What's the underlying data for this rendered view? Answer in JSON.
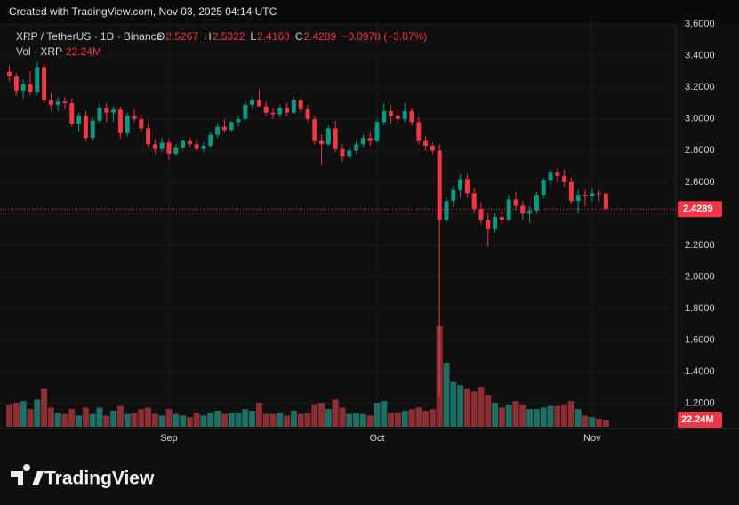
{
  "chart_data": {
    "type": "candlestick",
    "created": "Created with TradingView.com, Nov 03, 2025 04:14 UTC",
    "symbol": "XRP / TetherUS · 1D · Binance",
    "legend": [
      {
        "label": "O",
        "value": "2.5267"
      },
      {
        "label": "H",
        "value": "2.5322"
      },
      {
        "label": "L",
        "value": "2.4160"
      },
      {
        "label": "C",
        "value": "2.4289"
      }
    ],
    "change": "−0.0978 (−3.87%)",
    "vol_title": "Vol · XRP",
    "brand": "TradingView",
    "up_color": "#089981",
    "down_color": "#f23645",
    "volume_up_color": "#1f6e63",
    "volume_down_color": "#8a2f34",
    "grid": true,
    "ylim": [
      1.05,
      3.63
    ],
    "yticks": [
      {
        "value": 3.6,
        "label": "3.6000"
      },
      {
        "value": 3.4,
        "label": "3.4000"
      },
      {
        "value": 3.2,
        "label": "3.2000"
      },
      {
        "value": 3.0,
        "label": "3.0000"
      },
      {
        "value": 2.8,
        "label": "2.8000"
      },
      {
        "value": 2.6,
        "label": "2.6000"
      },
      {
        "value": 2.4,
        "label": "2.4000"
      },
      {
        "value": 2.2,
        "label": "2.2000"
      },
      {
        "value": 2.0,
        "label": "2.0000"
      },
      {
        "value": 1.8,
        "label": "1.8000"
      },
      {
        "value": 1.6,
        "label": "1.6000"
      },
      {
        "value": 1.4,
        "label": "1.4000"
      },
      {
        "value": 1.2,
        "label": "1.2000"
      }
    ],
    "categories": [
      null,
      null,
      null,
      null,
      null,
      null,
      null,
      null,
      null,
      null,
      null,
      null,
      null,
      null,
      null,
      null,
      null,
      null,
      null,
      null,
      null,
      null,
      null,
      "Sep",
      null,
      null,
      null,
      null,
      null,
      null,
      null,
      null,
      null,
      null,
      null,
      null,
      null,
      null,
      null,
      null,
      null,
      null,
      null,
      null,
      null,
      null,
      null,
      null,
      null,
      null,
      null,
      null,
      null,
      "Oct",
      null,
      null,
      null,
      null,
      null,
      null,
      null,
      null,
      null,
      null,
      null,
      null,
      null,
      null,
      null,
      null,
      null,
      null,
      null,
      null,
      null,
      null,
      null,
      null,
      null,
      null,
      null,
      null,
      null,
      null,
      "Nov",
      null,
      null
    ],
    "open": [
      3.3,
      3.27,
      3.18,
      3.22,
      3.17,
      3.33,
      3.12,
      3.09,
      3.11,
      3.1,
      2.97,
      3.02,
      2.88,
      2.99,
      3.07,
      3.04,
      3.06,
      2.91,
      3.02,
      3.0,
      2.94,
      2.84,
      2.81,
      2.85,
      2.78,
      2.82,
      2.86,
      2.84,
      2.81,
      2.83,
      2.9,
      2.95,
      2.93,
      2.98,
      3.0,
      3.09,
      3.12,
      3.08,
      3.04,
      3.03,
      3.07,
      3.04,
      3.12,
      3.06,
      3.0,
      2.86,
      2.84,
      2.94,
      2.81,
      2.76,
      2.8,
      2.84,
      2.88,
      2.86,
      2.98,
      3.05,
      3.02,
      3.0,
      3.05,
      2.98,
      2.86,
      2.83,
      2.8,
      2.36,
      2.48,
      2.55,
      2.62,
      2.53,
      2.43,
      2.36,
      2.3,
      2.38,
      2.36,
      2.49,
      2.45,
      2.4,
      2.42,
      2.52,
      2.61,
      2.66,
      2.64,
      2.6,
      2.48,
      2.52,
      2.51,
      2.53,
      2.5267
    ],
    "high": [
      3.34,
      3.29,
      3.25,
      3.3,
      3.36,
      3.4,
      3.16,
      3.14,
      3.14,
      3.13,
      3.04,
      3.05,
      3.01,
      3.1,
      3.1,
      3.08,
      3.08,
      3.04,
      3.06,
      3.03,
      2.97,
      2.87,
      2.88,
      2.87,
      2.84,
      2.87,
      2.88,
      2.87,
      2.85,
      2.92,
      2.97,
      3.0,
      2.99,
      3.02,
      3.11,
      3.14,
      3.19,
      3.11,
      3.07,
      3.09,
      3.1,
      3.14,
      3.13,
      3.09,
      3.02,
      2.9,
      2.96,
      2.99,
      2.84,
      2.82,
      2.86,
      2.9,
      2.92,
      3.0,
      3.1,
      3.09,
      3.06,
      3.1,
      3.07,
      3.01,
      2.89,
      2.85,
      2.84,
      2.5,
      2.58,
      2.65,
      2.65,
      2.56,
      2.47,
      2.4,
      2.4,
      2.42,
      2.52,
      2.54,
      2.48,
      2.45,
      2.54,
      2.63,
      2.68,
      2.69,
      2.68,
      2.63,
      2.55,
      2.55,
      2.56,
      2.55,
      2.5322
    ],
    "low": [
      3.24,
      3.15,
      3.13,
      3.15,
      3.15,
      3.1,
      3.05,
      3.05,
      3.06,
      2.95,
      2.92,
      2.86,
      2.86,
      2.97,
      2.98,
      2.98,
      2.88,
      2.89,
      2.98,
      2.92,
      2.82,
      2.78,
      2.79,
      2.74,
      2.76,
      2.8,
      2.82,
      2.8,
      2.79,
      2.82,
      2.88,
      2.91,
      2.92,
      2.95,
      2.99,
      3.06,
      3.1,
      3.02,
      3.0,
      3.01,
      3.02,
      3.03,
      3.04,
      2.98,
      2.84,
      2.71,
      2.83,
      2.79,
      2.73,
      2.75,
      2.78,
      2.82,
      2.83,
      2.85,
      2.96,
      2.97,
      2.98,
      2.98,
      2.96,
      2.84,
      2.8,
      2.78,
      1.25,
      2.34,
      2.44,
      2.5,
      2.5,
      2.4,
      2.33,
      2.19,
      2.28,
      2.33,
      2.35,
      2.42,
      2.36,
      2.34,
      2.4,
      2.5,
      2.58,
      2.6,
      2.57,
      2.46,
      2.4,
      2.45,
      2.48,
      2.48,
      2.416
    ],
    "close": [
      3.27,
      3.18,
      3.22,
      3.17,
      3.33,
      3.12,
      3.09,
      3.11,
      3.1,
      2.97,
      3.02,
      2.88,
      2.99,
      3.07,
      3.04,
      3.06,
      2.91,
      3.02,
      3.0,
      2.94,
      2.84,
      2.81,
      2.85,
      2.78,
      2.82,
      2.86,
      2.84,
      2.81,
      2.83,
      2.9,
      2.95,
      2.93,
      2.98,
      3.0,
      3.09,
      3.12,
      3.08,
      3.04,
      3.03,
      3.07,
      3.04,
      3.12,
      3.06,
      3.0,
      2.86,
      2.84,
      2.94,
      2.81,
      2.76,
      2.8,
      2.84,
      2.88,
      2.86,
      2.98,
      3.05,
      3.02,
      3.0,
      3.05,
      2.98,
      2.86,
      2.83,
      2.8,
      2.36,
      2.48,
      2.55,
      2.62,
      2.53,
      2.43,
      2.36,
      2.3,
      2.38,
      2.36,
      2.49,
      2.45,
      2.4,
      2.42,
      2.52,
      2.61,
      2.66,
      2.64,
      2.6,
      2.48,
      2.52,
      2.51,
      2.53,
      2.5267,
      2.4289
    ],
    "volume": {
      "values": [
        70,
        75,
        80,
        55,
        85,
        120,
        60,
        45,
        40,
        55,
        35,
        60,
        40,
        60,
        35,
        50,
        65,
        40,
        45,
        55,
        60,
        40,
        35,
        55,
        40,
        35,
        30,
        45,
        35,
        45,
        50,
        40,
        45,
        45,
        55,
        50,
        75,
        40,
        40,
        45,
        35,
        50,
        40,
        45,
        70,
        75,
        55,
        85,
        60,
        40,
        45,
        40,
        35,
        75,
        80,
        45,
        45,
        50,
        55,
        60,
        50,
        55,
        314,
        200,
        140,
        130,
        120,
        110,
        125,
        100,
        75,
        60,
        70,
        80,
        70,
        55,
        55,
        60,
        65,
        65,
        70,
        80,
        55,
        35,
        30,
        25,
        22.24
      ],
      "last_label": "22.24M"
    }
  }
}
